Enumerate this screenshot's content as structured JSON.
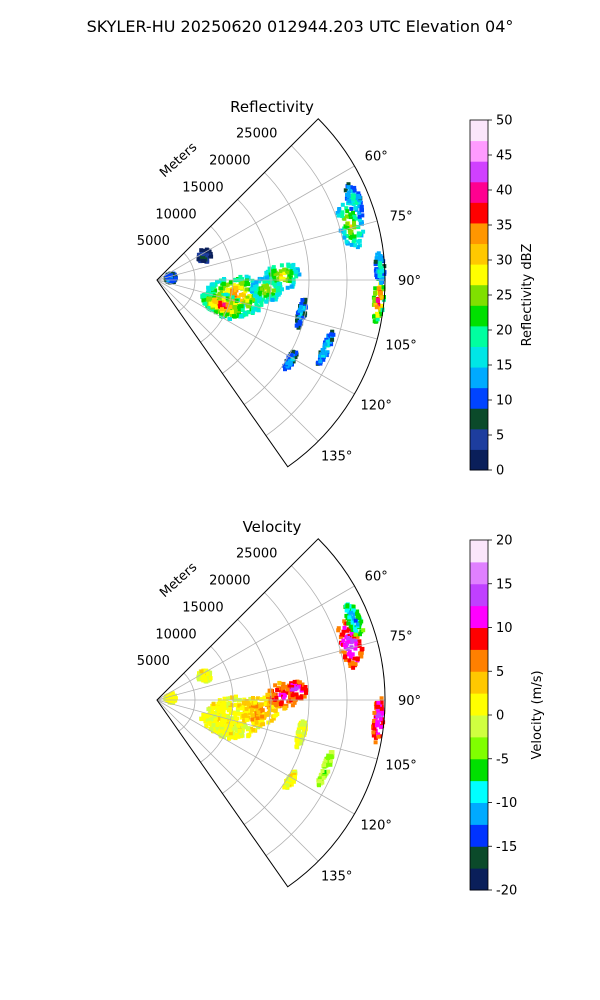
{
  "figure": {
    "title": "SKYLER-HU  20250620  012944.203 UTC Elevation 04°"
  },
  "chart_data": [
    {
      "type": "heatmap",
      "subtype": "polar-sector-ppi",
      "title": "Reflectivity",
      "radial_label": "Meters",
      "radial_ticks": [
        "5000",
        "10000",
        "15000",
        "20000",
        "25000"
      ],
      "radial_tick_values": [
        5000,
        10000,
        15000,
        20000,
        25000
      ],
      "range_max": 30000,
      "azimuth_ticks": [
        "60°",
        "75°",
        "90°",
        "105°",
        "120°",
        "135°"
      ],
      "azimuth_tick_values": [
        60,
        75,
        90,
        105,
        120,
        135
      ],
      "azimuth_range": [
        45,
        145
      ],
      "grid": true,
      "colorbar": {
        "label": "Reflectivity dBZ",
        "min": 0,
        "max": 50,
        "ticks": [
          "0",
          "5",
          "10",
          "15",
          "20",
          "25",
          "30",
          "35",
          "40",
          "45",
          "50"
        ],
        "colors": [
          "#0a1f5a",
          "#1d3d9e",
          "#0b4a2a",
          "#0044ff",
          "#00aaff",
          "#00e6e6",
          "#00ffa0",
          "#00e000",
          "#80e000",
          "#ffff00",
          "#ffc800",
          "#ff9600",
          "#ff0000",
          "#ff0090",
          "#d040ff",
          "#ff9bff",
          "#fbe6fb"
        ]
      },
      "echoes": [
        {
          "az": 101,
          "r": 10500,
          "dr": 3800,
          "daz": 14,
          "peak": 36
        },
        {
          "az": 111,
          "r": 9200,
          "dr": 3000,
          "daz": 9,
          "peak": 40
        },
        {
          "az": 88,
          "r": 16500,
          "dr": 2300,
          "daz": 6,
          "peak": 32
        },
        {
          "az": 95,
          "r": 14500,
          "dr": 2000,
          "daz": 7,
          "peak": 30
        },
        {
          "az": 74,
          "r": 26500,
          "dr": 1500,
          "daz": 7,
          "peak": 30
        },
        {
          "az": 68,
          "r": 28000,
          "dr": 900,
          "daz": 5,
          "peak": 20
        },
        {
          "az": 95,
          "r": 29300,
          "dr": 700,
          "daz": 6,
          "peak": 44
        },
        {
          "az": 87,
          "r": 29400,
          "dr": 600,
          "daz": 4,
          "peak": 22
        },
        {
          "az": 63,
          "r": 7000,
          "dr": 900,
          "daz": 7,
          "peak": 6
        },
        {
          "az": 82,
          "r": 1800,
          "dr": 700,
          "daz": 20,
          "peak": 16
        },
        {
          "az": 103,
          "r": 19500,
          "dr": 500,
          "daz": 6,
          "peak": 18
        },
        {
          "az": 112,
          "r": 24000,
          "dr": 500,
          "daz": 6,
          "peak": 20
        },
        {
          "az": 121,
          "r": 20500,
          "dr": 500,
          "daz": 4,
          "peak": 18
        }
      ]
    },
    {
      "type": "heatmap",
      "subtype": "polar-sector-ppi",
      "title": "Velocity",
      "radial_label": "Meters",
      "radial_ticks": [
        "5000",
        "10000",
        "15000",
        "20000",
        "25000"
      ],
      "radial_tick_values": [
        5000,
        10000,
        15000,
        20000,
        25000
      ],
      "range_max": 30000,
      "azimuth_ticks": [
        "60°",
        "75°",
        "90°",
        "105°",
        "120°",
        "135°"
      ],
      "azimuth_tick_values": [
        60,
        75,
        90,
        105,
        120,
        135
      ],
      "azimuth_range": [
        45,
        145
      ],
      "grid": true,
      "colorbar": {
        "label": "Velocity (m/s)",
        "min": -20,
        "max": 20,
        "ticks": [
          "-20",
          "-15",
          "-10",
          "-5",
          "0",
          "5",
          "10",
          "15",
          "20"
        ],
        "colors": [
          "#0a1f5a",
          "#0b4a2a",
          "#0033ff",
          "#00aaff",
          "#00ffff",
          "#00e000",
          "#80ff00",
          "#d0ff40",
          "#ffff00",
          "#ffc800",
          "#ff8000",
          "#ff0000",
          "#ff00ff",
          "#c040ff",
          "#e080ff",
          "#fbe6fb"
        ]
      },
      "echoes": [
        {
          "az": 101,
          "r": 10500,
          "dr": 3800,
          "daz": 14,
          "peak": 2
        },
        {
          "az": 111,
          "r": 9200,
          "dr": 3000,
          "daz": 9,
          "peak": 1
        },
        {
          "az": 96,
          "r": 13500,
          "dr": 2500,
          "daz": 8,
          "peak": 6
        },
        {
          "az": 88,
          "r": 16500,
          "dr": 2000,
          "daz": 6,
          "peak": 11
        },
        {
          "az": 86,
          "r": 18500,
          "dr": 1300,
          "daz": 4,
          "peak": 15
        },
        {
          "az": 74,
          "r": 26500,
          "dr": 1500,
          "daz": 7,
          "peak": 15
        },
        {
          "az": 68,
          "r": 28000,
          "dr": 900,
          "daz": 5,
          "peak": -12
        },
        {
          "az": 95,
          "r": 29300,
          "dr": 700,
          "daz": 6,
          "peak": 16
        },
        {
          "az": 63,
          "r": 7000,
          "dr": 900,
          "daz": 7,
          "peak": 1
        },
        {
          "az": 82,
          "r": 1800,
          "dr": 700,
          "daz": 20,
          "peak": 1
        },
        {
          "az": 103,
          "r": 19500,
          "dr": 500,
          "daz": 6,
          "peak": 0
        },
        {
          "az": 112,
          "r": 24000,
          "dr": 500,
          "daz": 6,
          "peak": -4
        },
        {
          "az": 121,
          "r": 20500,
          "dr": 500,
          "daz": 4,
          "peak": 1
        }
      ]
    }
  ]
}
